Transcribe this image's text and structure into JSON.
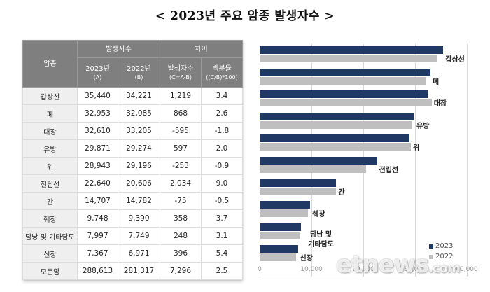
{
  "title": "< 2023년 주요 암종 발생자수 >",
  "table": {
    "header": {
      "category": "암종",
      "group_incidence": "발생자수",
      "group_diff": "차이",
      "col_2023": "2023년",
      "col_2023_sub": "(A)",
      "col_2022": "2022년",
      "col_2022_sub": "(B)",
      "col_diff": "발생자수",
      "col_diff_sub": "(C=A-B)",
      "col_pct": "백분율",
      "col_pct_sub": "((C/B)*100)"
    },
    "rows": [
      {
        "cancer": "갑상선",
        "y2023": "35,440",
        "y2022": "34,221",
        "diff": "1,219",
        "pct": "3.4"
      },
      {
        "cancer": "폐",
        "y2023": "32,953",
        "y2022": "32,085",
        "diff": "868",
        "pct": "2.6"
      },
      {
        "cancer": "대장",
        "y2023": "32,610",
        "y2022": "33,205",
        "diff": "-595",
        "pct": "-1.8"
      },
      {
        "cancer": "유방",
        "y2023": "29,871",
        "y2022": "29,274",
        "diff": "597",
        "pct": "2.0"
      },
      {
        "cancer": "위",
        "y2023": "28,943",
        "y2022": "29,196",
        "diff": "-253",
        "pct": "-0.9"
      },
      {
        "cancer": "전립선",
        "y2023": "22,640",
        "y2022": "20,606",
        "diff": "2,034",
        "pct": "9.0"
      },
      {
        "cancer": "간",
        "y2023": "14,707",
        "y2022": "14,782",
        "diff": "-75",
        "pct": "-0.5"
      },
      {
        "cancer": "췌장",
        "y2023": "9,748",
        "y2022": "9,390",
        "diff": "358",
        "pct": "3.7"
      },
      {
        "cancer": "담낭 및 기타담도",
        "y2023": "7,997",
        "y2022": "7,749",
        "diff": "248",
        "pct": "3.1"
      },
      {
        "cancer": "신장",
        "y2023": "7,367",
        "y2022": "6,971",
        "diff": "396",
        "pct": "5.4"
      },
      {
        "cancer": "모든암",
        "y2023": "288,613",
        "y2022": "281,317",
        "diff": "7,296",
        "pct": "2.5"
      }
    ]
  },
  "chart_data": {
    "type": "bar",
    "orientation": "horizontal",
    "title": "",
    "categories": [
      "갑상선",
      "폐",
      "대장",
      "유방",
      "위",
      "전립선",
      "간",
      "췌장",
      "담낭 및 기타담도",
      "신장"
    ],
    "category_labels": [
      [
        "갑상선"
      ],
      [
        "폐"
      ],
      [
        "대장"
      ],
      [
        "유방"
      ],
      [
        "위"
      ],
      [
        "전립선"
      ],
      [
        "간"
      ],
      [
        "췌장"
      ],
      [
        "담낭 및",
        "기타담도"
      ],
      [
        "신장"
      ]
    ],
    "series": [
      {
        "name": "2023",
        "color": "#1f3864",
        "values": [
          35440,
          32953,
          32610,
          29871,
          28943,
          22640,
          14707,
          9748,
          7997,
          7367
        ]
      },
      {
        "name": "2022",
        "color": "#bfbfbf",
        "values": [
          34221,
          32085,
          33205,
          29274,
          29196,
          20606,
          14782,
          9390,
          7749,
          6971
        ]
      }
    ],
    "xlabel": "",
    "ylabel": "",
    "xlim": [
      0,
      40000
    ],
    "x_ticks": [
      "0",
      "10,000",
      "20,000",
      "30,000",
      "40,000"
    ],
    "grid": true,
    "legend": {
      "position": "right-bottom",
      "entries": [
        "2023",
        "2022"
      ]
    }
  },
  "watermark": {
    "main": "etnews",
    "suffix": ".com"
  }
}
